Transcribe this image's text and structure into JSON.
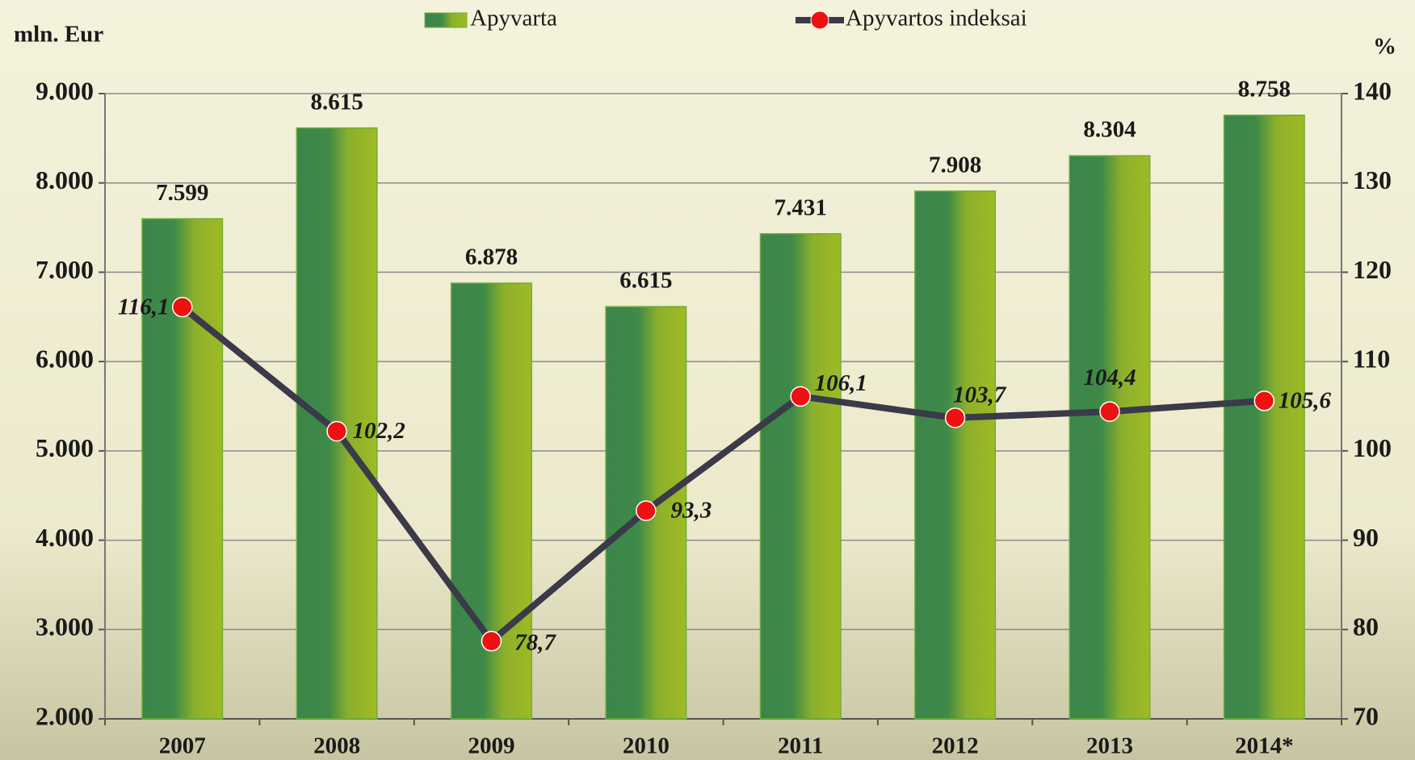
{
  "chart_data": {
    "type": "combo",
    "y_axis_label": "mln. Eur",
    "y2_axis_label": "%",
    "categories": [
      "2007",
      "2008",
      "2009",
      "2010",
      "2011",
      "2012",
      "2013",
      "2014*"
    ],
    "series": [
      {
        "name": "Apyvarta",
        "type": "bar",
        "axis": "y",
        "color": "#4a8f45",
        "values": [
          7599,
          8615,
          6878,
          6615,
          7431,
          7908,
          8304,
          8758
        ],
        "value_labels": [
          "7.599",
          "8.615",
          "6.878",
          "6.615",
          "7.431",
          "7.908",
          "8.304",
          "8.758"
        ]
      },
      {
        "name": "Apyvartos indeksai",
        "type": "line",
        "axis": "y2",
        "color": "#3a3a48",
        "marker_color": "#ee1111",
        "values": [
          116.1,
          102.2,
          78.7,
          93.3,
          106.1,
          103.7,
          104.4,
          105.6
        ],
        "value_labels": [
          "116,1",
          "102,2",
          "78,7",
          "93,3",
          "106,1",
          "103,7",
          "104,4",
          "105,6"
        ]
      }
    ],
    "ylim": [
      2000,
      9000
    ],
    "yticks": [
      {
        "value": 2000,
        "label": "2.000"
      },
      {
        "value": 3000,
        "label": "3.000"
      },
      {
        "value": 4000,
        "label": "4.000"
      },
      {
        "value": 5000,
        "label": "5.000"
      },
      {
        "value": 6000,
        "label": "6.000"
      },
      {
        "value": 7000,
        "label": "7.000"
      },
      {
        "value": 8000,
        "label": "8.000"
      },
      {
        "value": 9000,
        "label": "9.000"
      }
    ],
    "y2lim": [
      70,
      140
    ],
    "y2ticks": [
      70,
      80,
      90,
      100,
      110,
      120,
      130,
      140
    ],
    "grid": true
  }
}
